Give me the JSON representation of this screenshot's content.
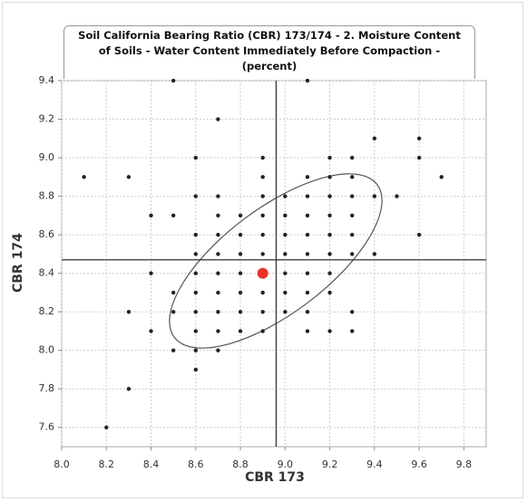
{
  "chart_data": {
    "type": "scatter",
    "title": "Soil California Bearing Ratio (CBR) 173/174 - 2. Moisture Content of Soils - Water Content Immediately Before Compaction - (percent)",
    "x_label": "CBR 173",
    "y_label": "CBR 174",
    "xlim": [
      8.0,
      9.9
    ],
    "ylim": [
      7.5,
      9.4
    ],
    "xticks": [
      {
        "value": 8,
        "label": "8.0"
      },
      8.2,
      8.4,
      8.6,
      8.8,
      {
        "value": 9,
        "label": "9.0"
      },
      9.2,
      9.4,
      9.6,
      9.8
    ],
    "yticks": [
      7.6,
      7.8,
      {
        "value": 8,
        "label": "8.0"
      },
      8.2,
      8.4,
      8.6,
      8.8,
      {
        "value": 9,
        "label": "9.0"
      },
      9.2,
      9.4
    ],
    "grid": true,
    "reference_lines": {
      "x": 8.96,
      "y": 8.47
    },
    "series": [
      {
        "color": "#222222",
        "size": 2.2,
        "x": [
          8.5,
          9.1,
          8.7,
          9.4,
          9.6,
          8.6,
          8.9,
          9.2,
          9.3,
          9.6,
          8.1,
          8.3,
          8.9,
          9.1,
          9.2,
          9.3,
          9.7,
          8.6,
          8.7,
          8.9,
          9.0,
          9.1,
          9.2,
          9.3,
          9.4,
          9.5,
          8.4,
          8.5,
          8.7,
          8.8,
          8.9,
          9.0,
          9.1,
          9.2,
          9.3,
          8.6,
          8.7,
          8.8,
          8.9,
          9.0,
          9.1,
          9.2,
          9.3,
          9.6,
          8.6,
          8.7,
          8.8,
          8.9,
          9.0,
          9.1,
          9.2,
          9.3,
          9.4,
          8.4,
          8.6,
          8.7,
          8.8,
          9.0,
          9.1,
          9.2,
          8.5,
          8.6,
          8.7,
          8.8,
          8.9,
          9.0,
          9.1,
          9.2,
          8.3,
          8.5,
          8.6,
          8.7,
          8.8,
          8.9,
          9.0,
          9.1,
          9.3,
          8.4,
          8.6,
          8.7,
          8.8,
          8.9,
          9.1,
          9.2,
          9.3,
          8.5,
          8.6,
          8.7,
          8.6,
          8.3,
          8.2
        ],
        "y": [
          9.4,
          9.4,
          9.2,
          9.1,
          9.1,
          9.0,
          9.0,
          9.0,
          9.0,
          9.0,
          8.9,
          8.9,
          8.9,
          8.9,
          8.9,
          8.9,
          8.9,
          8.8,
          8.8,
          8.8,
          8.8,
          8.8,
          8.8,
          8.8,
          8.8,
          8.8,
          8.7,
          8.7,
          8.7,
          8.7,
          8.7,
          8.7,
          8.7,
          8.7,
          8.7,
          8.6,
          8.6,
          8.6,
          8.6,
          8.6,
          8.6,
          8.6,
          8.6,
          8.6,
          8.5,
          8.5,
          8.5,
          8.5,
          8.5,
          8.5,
          8.5,
          8.5,
          8.5,
          8.4,
          8.4,
          8.4,
          8.4,
          8.4,
          8.4,
          8.4,
          8.3,
          8.3,
          8.3,
          8.3,
          8.3,
          8.3,
          8.3,
          8.3,
          8.2,
          8.2,
          8.2,
          8.2,
          8.2,
          8.2,
          8.2,
          8.2,
          8.2,
          8.1,
          8.1,
          8.1,
          8.1,
          8.1,
          8.1,
          8.1,
          8.1,
          8.0,
          8.0,
          8.0,
          7.9,
          7.8,
          7.6
        ]
      },
      {
        "color": "#e8312a",
        "size": 6,
        "x": [
          8.9
        ],
        "y": [
          8.4
        ]
      }
    ]
  }
}
